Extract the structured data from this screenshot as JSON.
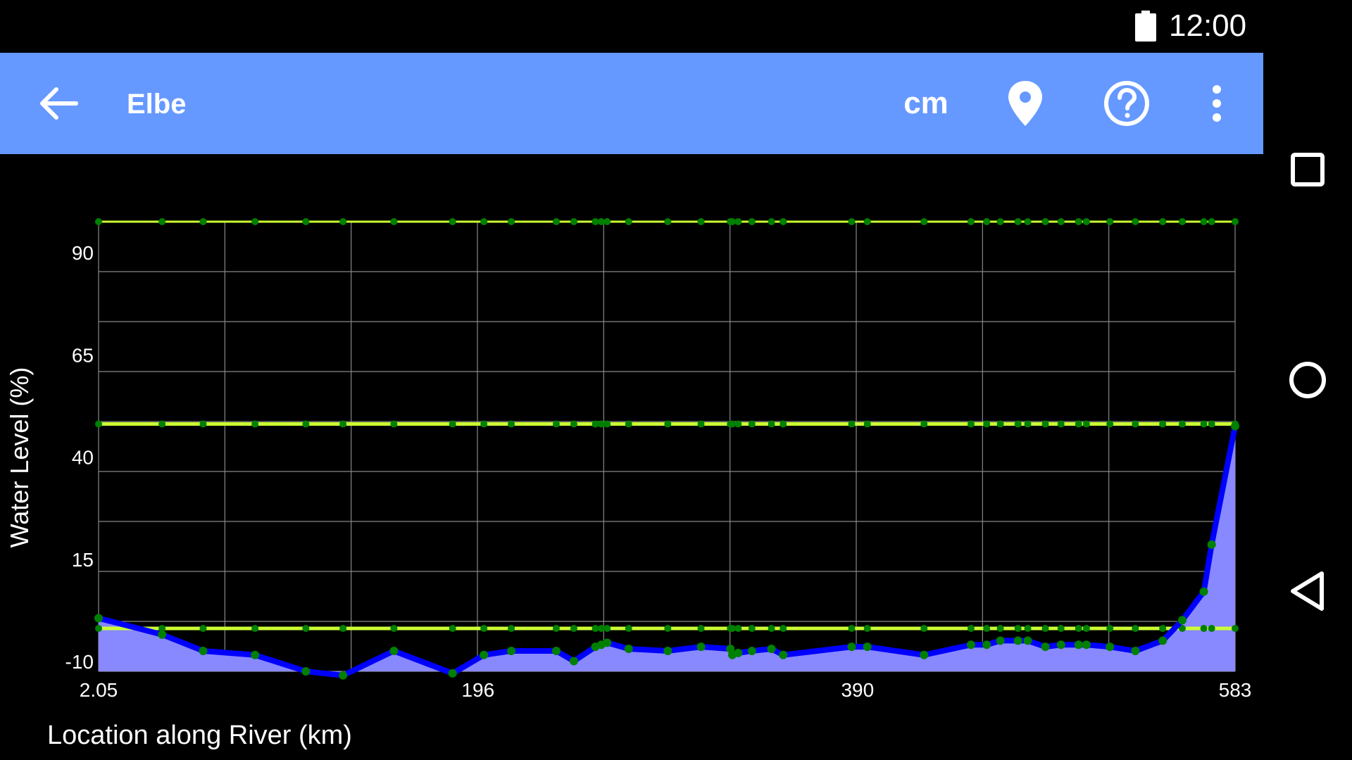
{
  "status_bar": {
    "time": "12:00",
    "battery_icon": "battery-full-icon"
  },
  "toolbar": {
    "back_icon": "arrow-back-icon",
    "title": "Elbe",
    "units_label": "cm",
    "location_icon": "map-pin-icon",
    "help_icon": "help-circle-icon",
    "overflow_icon": "more-vertical-icon",
    "background_color": "#6699ff"
  },
  "nav_bar": {
    "recents_icon": "square-icon",
    "home_icon": "circle-icon",
    "back_icon": "triangle-back-icon"
  },
  "chart_data": {
    "type": "area",
    "xlabel": "Location along River (km)",
    "ylabel": "Water Level (%)",
    "x_ticks": [
      "2.05",
      "196",
      "390",
      "583"
    ],
    "y_ticks": [
      "-10",
      "15",
      "40",
      "65",
      "90"
    ],
    "xlim": [
      2.05,
      583
    ],
    "ylim": [
      -10,
      100
    ],
    "grid": true,
    "colors": {
      "area_fill": "#8888ff",
      "line": "#0000ff",
      "points": "#008000",
      "threshold_lines": "#ccff33",
      "grid": "#888888"
    },
    "series": [
      {
        "x": [
          2.05,
          34.5,
          55.5,
          82,
          108,
          127,
          153,
          183,
          199,
          213,
          236,
          245,
          256,
          259,
          262,
          273,
          293,
          310,
          325,
          326,
          329,
          336,
          346,
          352,
          387,
          395,
          424,
          448,
          456,
          463,
          472,
          477,
          486,
          494,
          503,
          507,
          519,
          532,
          546,
          556,
          567,
          571,
          583
        ],
        "y": [
          3,
          -1,
          -5,
          -6,
          -10,
          -11,
          -5,
          -10.5,
          -6,
          -5,
          -5,
          -7.5,
          -4,
          -3.5,
          -3,
          -4.5,
          -5,
          -4,
          -4.5,
          -6,
          -5.5,
          -5,
          -4.5,
          -6,
          -4,
          -4,
          -6,
          -3.5,
          -3.5,
          -2.5,
          -2.5,
          -2.5,
          -4,
          -3.5,
          -3.5,
          -3.5,
          -4,
          -5,
          -2.5,
          2.5,
          9.5,
          21,
          50
        ]
      }
    ],
    "threshold_lines": [
      0.5,
      50.5,
      100
    ]
  }
}
